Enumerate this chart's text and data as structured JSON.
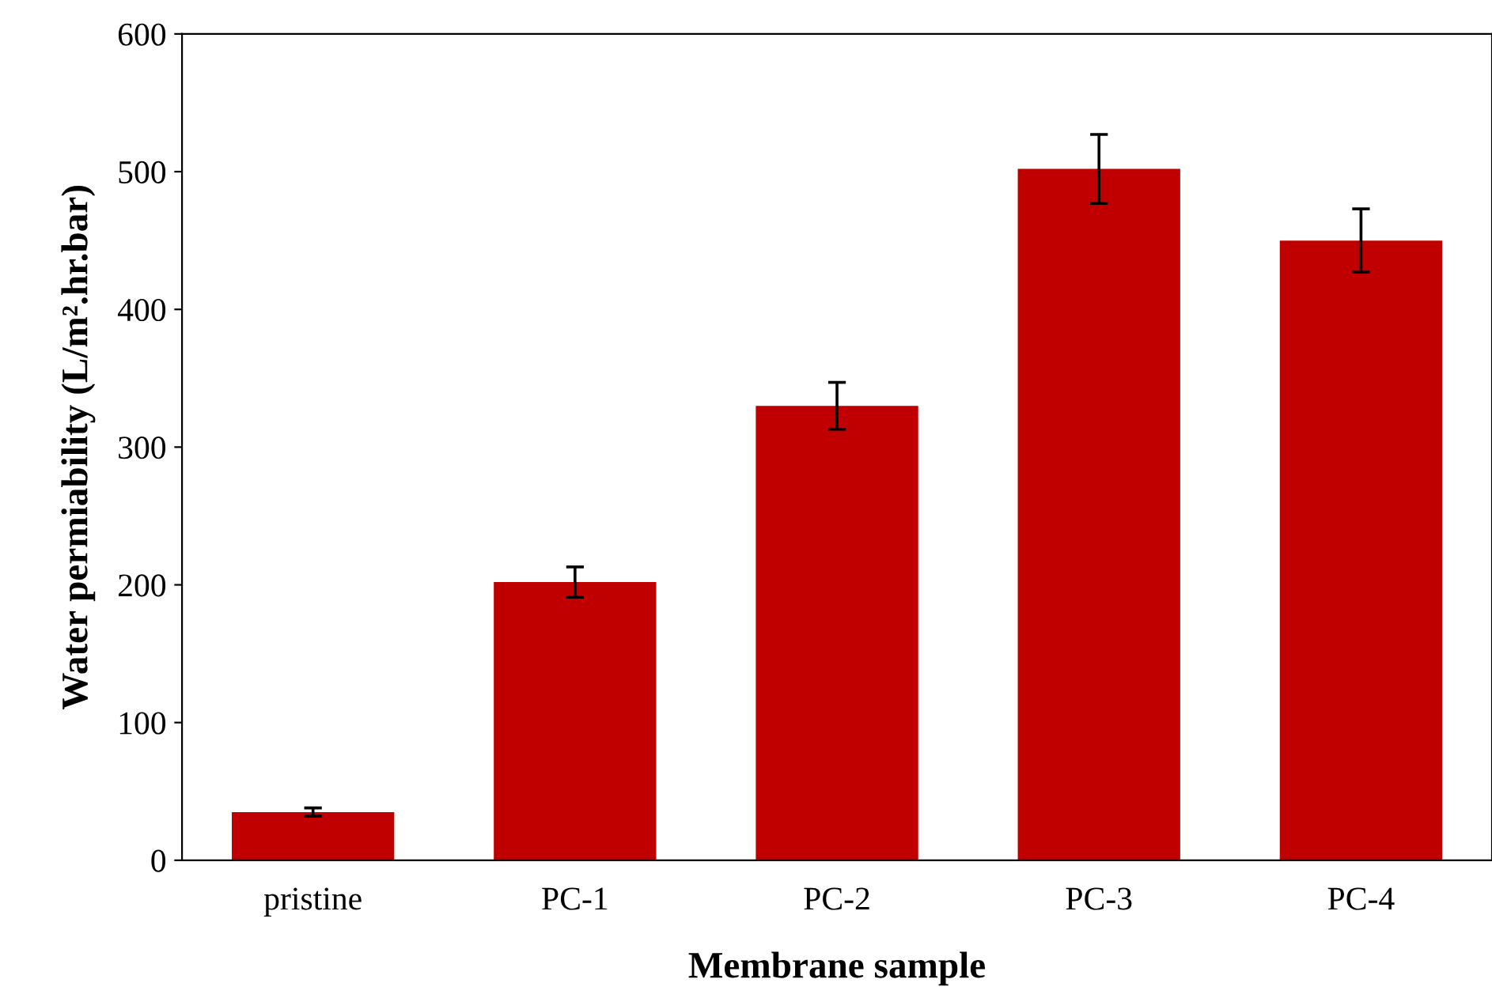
{
  "chart_data": {
    "type": "bar",
    "xlabel": "Membrane sample",
    "ylabel": "Water permiability (L/m².hr.bar)",
    "categories": [
      "pristine",
      "PC-1",
      "PC-2",
      "PC-3",
      "PC-4"
    ],
    "values": [
      35,
      202,
      330,
      502,
      450
    ],
    "errors": [
      3,
      11,
      17,
      25,
      23
    ],
    "color": "#c00000",
    "ylim": [
      0,
      600
    ],
    "yticks": [
      0,
      100,
      200,
      300,
      400,
      500,
      600
    ],
    "grid": false
  }
}
